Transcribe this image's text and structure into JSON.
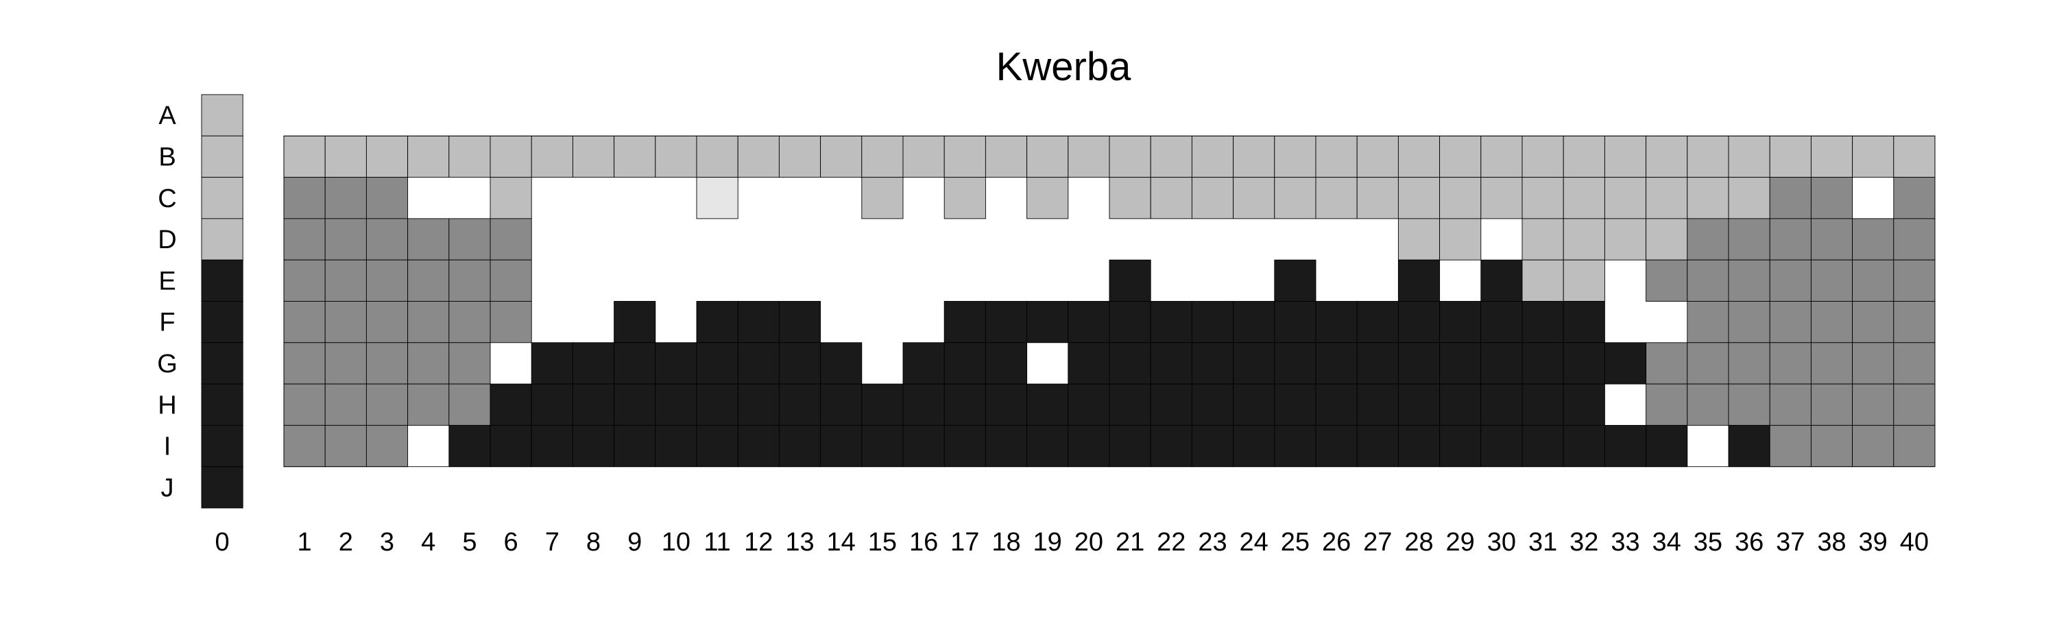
{
  "chart_data": {
    "type": "heatmap",
    "title": "Kwerba",
    "rows": [
      "A",
      "B",
      "C",
      "D",
      "E",
      "F",
      "G",
      "H",
      "I",
      "J"
    ],
    "columns": [
      "0",
      "1",
      "2",
      "3",
      "4",
      "5",
      "6",
      "7",
      "8",
      "9",
      "10",
      "11",
      "12",
      "13",
      "14",
      "15",
      "16",
      "17",
      "18",
      "19",
      "20",
      "21",
      "22",
      "23",
      "24",
      "25",
      "26",
      "27",
      "28",
      "29",
      "30",
      "31",
      "32",
      "33",
      "34",
      "35",
      "36",
      "37",
      "38",
      "39",
      "40"
    ],
    "palette": {
      "1": "#1a1a1a",
      "2": "#8a8a8a",
      "3": "#bebebe",
      "4": "#e6e6e6",
      "0": "#ffffff"
    },
    "reference_column": {
      "label": "0",
      "values": {
        "A": 3,
        "B": 3,
        "C": 3,
        "D": 3,
        "E": 1,
        "F": 1,
        "G": 1,
        "H": 1,
        "I": 1,
        "J": 1
      }
    },
    "grid_rows": [
      "B",
      "C",
      "D",
      "E",
      "F",
      "G",
      "H",
      "I"
    ],
    "grid": [
      [
        3,
        3,
        3,
        3,
        3,
        3,
        3,
        3,
        3,
        3,
        3,
        3,
        3,
        3,
        3,
        3,
        3,
        3,
        3,
        3,
        3,
        3,
        3,
        3,
        3,
        3,
        3,
        3,
        3,
        3,
        3,
        3,
        3,
        3,
        3,
        3,
        3,
        3,
        3,
        3
      ],
      [
        2,
        2,
        2,
        0,
        0,
        3,
        0,
        0,
        0,
        0,
        4,
        0,
        0,
        0,
        3,
        0,
        3,
        0,
        3,
        0,
        3,
        3,
        3,
        3,
        3,
        3,
        3,
        3,
        3,
        3,
        3,
        3,
        3,
        3,
        3,
        3,
        2,
        2,
        0,
        2
      ],
      [
        2,
        2,
        2,
        2,
        2,
        2,
        0,
        0,
        0,
        0,
        0,
        0,
        0,
        0,
        0,
        0,
        0,
        0,
        0,
        0,
        0,
        0,
        0,
        0,
        0,
        0,
        0,
        3,
        3,
        0,
        3,
        3,
        3,
        3,
        2,
        2,
        2,
        2,
        2,
        2
      ],
      [
        2,
        2,
        2,
        2,
        2,
        2,
        0,
        0,
        0,
        0,
        0,
        0,
        0,
        0,
        0,
        0,
        0,
        0,
        0,
        0,
        1,
        0,
        0,
        0,
        1,
        0,
        0,
        1,
        0,
        1,
        3,
        3,
        0,
        2,
        2,
        2,
        2,
        2,
        2,
        2
      ],
      [
        2,
        2,
        2,
        2,
        2,
        2,
        0,
        0,
        1,
        0,
        1,
        1,
        1,
        0,
        0,
        0,
        1,
        1,
        1,
        1,
        1,
        1,
        1,
        1,
        1,
        1,
        1,
        1,
        1,
        1,
        1,
        1,
        0,
        0,
        2,
        2,
        2,
        2,
        2,
        2
      ],
      [
        2,
        2,
        2,
        2,
        2,
        0,
        1,
        1,
        1,
        1,
        1,
        1,
        1,
        1,
        0,
        1,
        1,
        1,
        0,
        1,
        1,
        1,
        1,
        1,
        1,
        1,
        1,
        1,
        1,
        1,
        1,
        1,
        1,
        2,
        2,
        2,
        2,
        2,
        2,
        2
      ],
      [
        2,
        2,
        2,
        2,
        2,
        1,
        1,
        1,
        1,
        1,
        1,
        1,
        1,
        1,
        1,
        1,
        1,
        1,
        1,
        1,
        1,
        1,
        1,
        1,
        1,
        1,
        1,
        1,
        1,
        1,
        1,
        1,
        0,
        2,
        2,
        2,
        2,
        2,
        2,
        2
      ],
      [
        2,
        2,
        2,
        0,
        1,
        1,
        1,
        1,
        1,
        1,
        1,
        1,
        1,
        1,
        1,
        1,
        1,
        1,
        1,
        1,
        1,
        1,
        1,
        1,
        1,
        1,
        1,
        1,
        1,
        1,
        1,
        1,
        1,
        1,
        0,
        1,
        2,
        2,
        2,
        2
      ]
    ]
  }
}
